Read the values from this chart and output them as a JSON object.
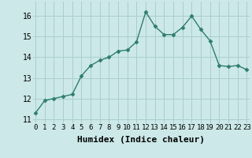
{
  "x": [
    0,
    1,
    2,
    3,
    4,
    5,
    6,
    7,
    8,
    9,
    10,
    11,
    12,
    13,
    14,
    15,
    16,
    17,
    18,
    19,
    20,
    21,
    22,
    23
  ],
  "y": [
    11.3,
    11.9,
    12.0,
    12.1,
    12.2,
    13.1,
    13.6,
    13.85,
    14.0,
    14.3,
    14.35,
    14.75,
    16.2,
    15.5,
    15.1,
    15.1,
    15.45,
    16.0,
    15.35,
    14.8,
    13.6,
    13.55,
    13.6,
    13.4
  ],
  "line_color": "#2e7d6e",
  "marker": "D",
  "marker_size": 2.5,
  "bg_color": "#cce8e8",
  "grid_color": "#aacece",
  "xlabel": "Humidex (Indice chaleur)",
  "xlabel_fontsize": 8,
  "yticks": [
    11,
    12,
    13,
    14,
    15,
    16
  ],
  "xticks": [
    0,
    1,
    2,
    3,
    4,
    5,
    6,
    7,
    8,
    9,
    10,
    11,
    12,
    13,
    14,
    15,
    16,
    17,
    18,
    19,
    20,
    21,
    22,
    23
  ],
  "xlim": [
    -0.3,
    23.3
  ],
  "ylim": [
    10.8,
    16.7
  ],
  "ytick_fontsize": 7,
  "xtick_fontsize": 6.5,
  "linewidth": 1.0,
  "font_family": "monospace"
}
